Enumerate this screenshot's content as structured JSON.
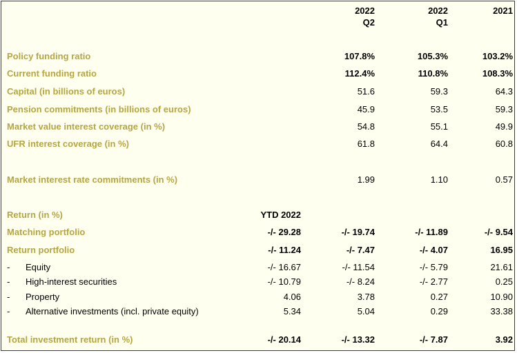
{
  "header": {
    "col_q2": {
      "year": "2022",
      "period": "Q2"
    },
    "col_q1": {
      "year": "2022",
      "period": "Q1"
    },
    "col_2021": {
      "year": "2021"
    }
  },
  "funding": [
    {
      "label": "Policy funding ratio",
      "q2": "107.8%",
      "q1": "105.3%",
      "y2021": "103.2%"
    },
    {
      "label": "Current funding ratio",
      "q2": "112.4%",
      "q1": "110.8%",
      "y2021": "108.3%"
    },
    {
      "label": "Capital (in billions of euros)",
      "q2": "51.6",
      "q1": "59.3",
      "y2021": "64.3"
    },
    {
      "label": "Pension commitments (in billions of euros)",
      "q2": "45.9",
      "q1": "53.5",
      "y2021": "59.3"
    },
    {
      "label": "Market value interest coverage (in %)",
      "q2": "54.8",
      "q1": "55.1",
      "y2021": "49.9"
    },
    {
      "label": "UFR interest coverage (in %)",
      "q2": "61.8",
      "q1": "64.4",
      "y2021": "60.8"
    }
  ],
  "interest": {
    "label": "Market interest rate commitments (in %)",
    "q2": "1.99",
    "q1": "1.10",
    "y2021": "0.57"
  },
  "returns": {
    "label": "Return (in %)",
    "ytd_header": "YTD 2022",
    "matching": {
      "label": "Matching portfolio",
      "ytd": "-/- 29.28",
      "q2": "-/- 19.74",
      "q1": "-/- 11.89",
      "y2021": "-/- 9.54"
    },
    "return_portfolio": {
      "label": "Return portfolio",
      "ytd": "-/- 11.24",
      "q2": "-/- 7.47",
      "q1": "-/- 4.07",
      "y2021": "16.95"
    },
    "sub": [
      {
        "dash": "-",
        "label": "Equity",
        "ytd": "-/- 16.67",
        "q2": "-/- 11.54",
        "q1": "-/- 5.79",
        "y2021": "21.61"
      },
      {
        "dash": "-",
        "label": "High-interest securities",
        "ytd": "-/- 10.79",
        "q2": "-/- 8.24",
        "q1": "-/- 2.77",
        "y2021": "0.25"
      },
      {
        "dash": "-",
        "label": "Property",
        "ytd": "4.06",
        "q2": "3.78",
        "q1": "0.27",
        "y2021": "10.90"
      },
      {
        "dash": "-",
        "label": "Alternative investments (incl. private equity)",
        "ytd": "5.34",
        "q2": "5.04",
        "q1": "0.29",
        "y2021": "33.38"
      }
    ],
    "total": {
      "label": "Total investment return (in %)",
      "ytd": "-/- 20.14",
      "q2": "-/- 13.32",
      "q1": "-/- 7.87",
      "y2021": "3.92"
    }
  },
  "colors": {
    "label_gold": "#b5a642",
    "background": "#fffff0"
  }
}
